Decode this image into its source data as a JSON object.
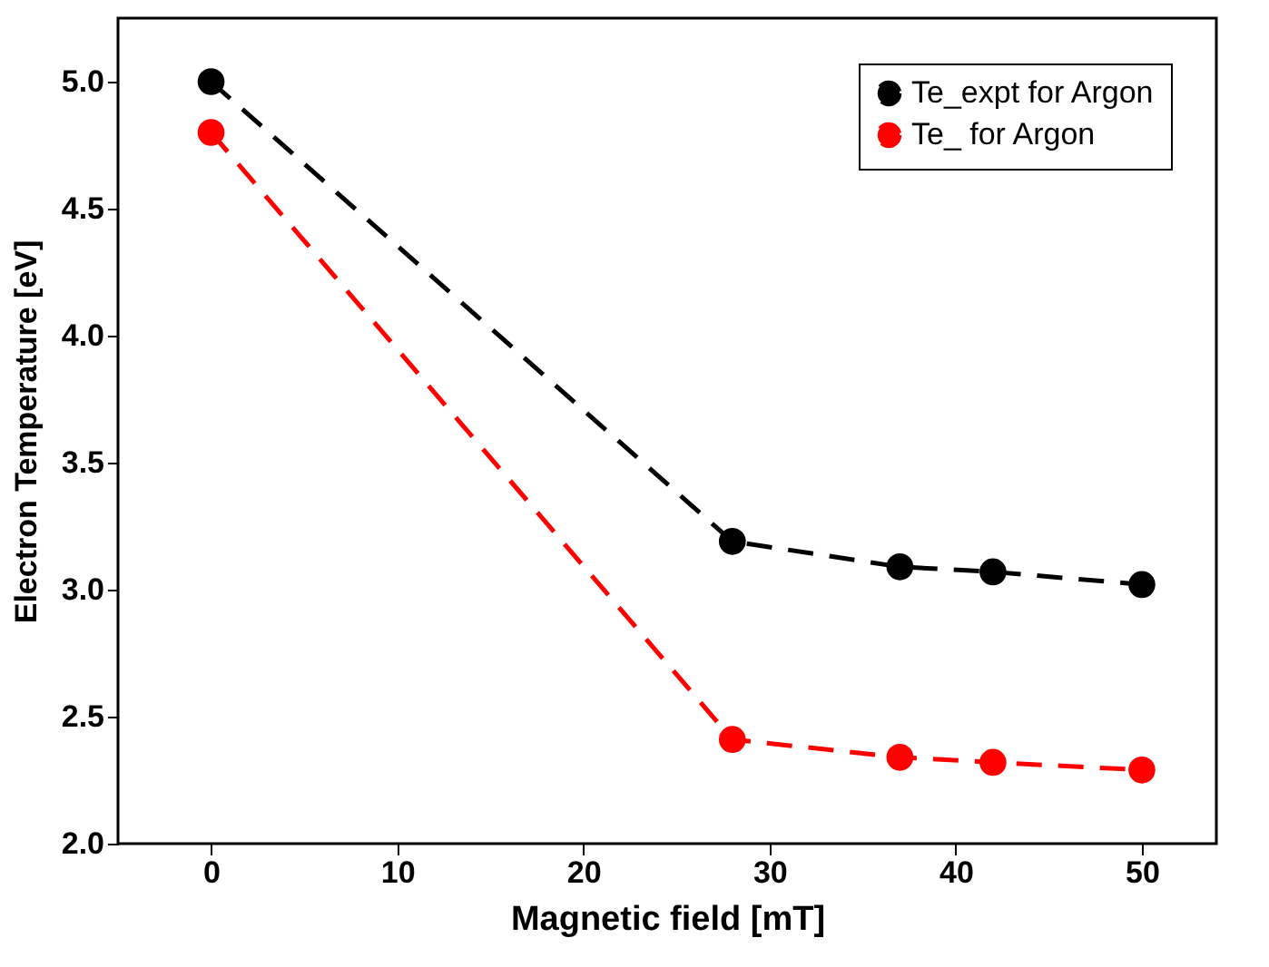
{
  "chart_data": {
    "type": "line",
    "xlabel": "Magnetic field [mT]",
    "ylabel": "Electron Temperature [eV]",
    "xlim": [
      -5,
      54
    ],
    "xticks": [
      0,
      10,
      20,
      30,
      40,
      50
    ],
    "ylim": [
      2.0,
      5.25
    ],
    "yticks": [
      {
        "value": 2.0,
        "label": "2.0"
      },
      {
        "value": 2.5,
        "label": "2.5"
      },
      {
        "value": 3.0,
        "label": "3.0"
      },
      {
        "value": 3.5,
        "label": "3.5"
      },
      {
        "value": 4.0,
        "label": "4.0"
      },
      {
        "value": 4.5,
        "label": "4.5"
      },
      {
        "value": 5.0,
        "label": "5.0"
      }
    ],
    "x": [
      0,
      28,
      37,
      42,
      50
    ],
    "series": [
      {
        "name": "Te_expt for Argon",
        "color": "#000000",
        "values": [
          5.0,
          3.19,
          3.09,
          3.07,
          3.02
        ]
      },
      {
        "name": "Te_ for Argon",
        "color": "#ff0000",
        "values": [
          4.8,
          2.41,
          2.34,
          2.32,
          2.29
        ]
      }
    ],
    "legend": "top right",
    "grid": false,
    "marker": "circle",
    "line_style": "dashed"
  }
}
